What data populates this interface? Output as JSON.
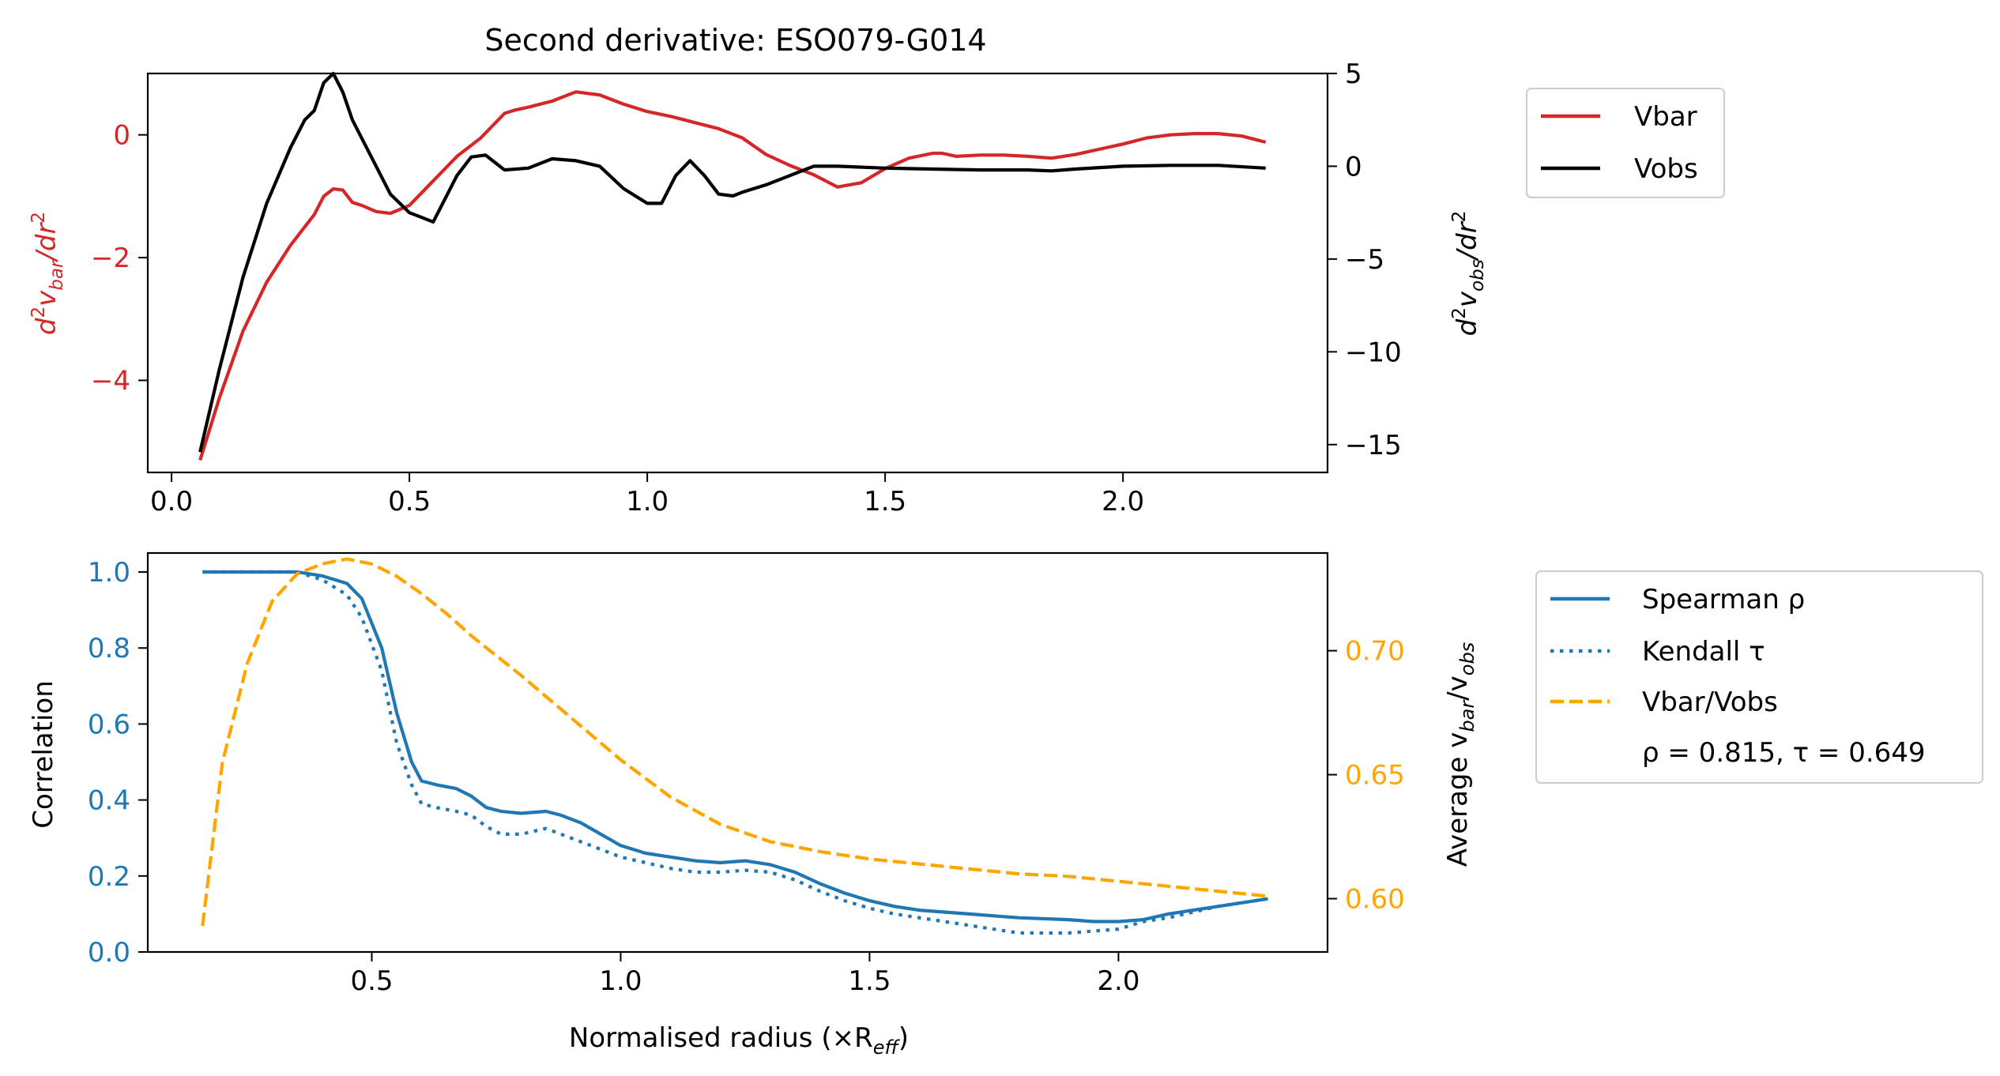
{
  "chart_data": [
    {
      "type": "line",
      "title": "Second derivative: ESO079-G014",
      "xlim": [
        -0.05,
        2.43
      ],
      "xticks": [
        "0.0",
        "0.5",
        "1.0",
        "1.5",
        "2.0"
      ],
      "xtick_values": [
        0.0,
        0.5,
        1.0,
        1.5,
        2.0
      ],
      "left_axis": {
        "ylim": [
          -5.5,
          1.0
        ],
        "ticks": [
          "0",
          "−2",
          "−4"
        ],
        "tick_values": [
          0,
          -2,
          -4
        ],
        "color": "#d62728"
      },
      "right_axis": {
        "ylim": [
          -16.5,
          5.0
        ],
        "ticks": [
          "5",
          "0",
          "−5",
          "−10",
          "−15"
        ],
        "tick_values": [
          5,
          0,
          -5,
          -10,
          -15
        ],
        "color": "#000000"
      },
      "legend": {
        "placement": "outside-right-top",
        "entries": [
          "Vbar",
          "Vobs"
        ]
      },
      "grid": false,
      "series": [
        {
          "name": "Vbar",
          "axis": "left",
          "color": "#d62728",
          "x": [
            0.06,
            0.1,
            0.15,
            0.2,
            0.25,
            0.3,
            0.32,
            0.34,
            0.36,
            0.38,
            0.4,
            0.43,
            0.46,
            0.5,
            0.55,
            0.6,
            0.65,
            0.7,
            0.72,
            0.75,
            0.8,
            0.85,
            0.9,
            0.95,
            1.0,
            1.05,
            1.1,
            1.15,
            1.2,
            1.25,
            1.3,
            1.35,
            1.4,
            1.45,
            1.5,
            1.55,
            1.6,
            1.62,
            1.65,
            1.7,
            1.75,
            1.8,
            1.85,
            1.9,
            2.0,
            2.05,
            2.1,
            2.15,
            2.2,
            2.25,
            2.3
          ],
          "y": [
            -5.3,
            -4.3,
            -3.2,
            -2.4,
            -1.8,
            -1.3,
            -1.0,
            -0.88,
            -0.9,
            -1.1,
            -1.15,
            -1.25,
            -1.28,
            -1.15,
            -0.75,
            -0.35,
            -0.05,
            0.35,
            0.4,
            0.45,
            0.55,
            0.7,
            0.65,
            0.5,
            0.38,
            0.3,
            0.2,
            0.1,
            -0.05,
            -0.32,
            -0.5,
            -0.65,
            -0.85,
            -0.78,
            -0.55,
            -0.38,
            -0.3,
            -0.3,
            -0.35,
            -0.33,
            -0.33,
            -0.35,
            -0.38,
            -0.32,
            -0.15,
            -0.05,
            0.0,
            0.02,
            0.02,
            -0.02,
            -0.12
          ]
        },
        {
          "name": "Vobs",
          "axis": "right",
          "color": "#000000",
          "x": [
            0.06,
            0.1,
            0.15,
            0.2,
            0.25,
            0.28,
            0.3,
            0.32,
            0.34,
            0.36,
            0.38,
            0.4,
            0.43,
            0.46,
            0.5,
            0.53,
            0.55,
            0.57,
            0.6,
            0.63,
            0.66,
            0.7,
            0.75,
            0.8,
            0.85,
            0.9,
            0.95,
            1.0,
            1.03,
            1.06,
            1.09,
            1.12,
            1.15,
            1.18,
            1.2,
            1.25,
            1.3,
            1.35,
            1.4,
            1.5,
            1.6,
            1.7,
            1.8,
            1.85,
            1.9,
            2.0,
            2.1,
            2.2,
            2.3
          ],
          "y": [
            -15.4,
            -11.0,
            -6.0,
            -2.0,
            1.0,
            2.5,
            3.0,
            4.5,
            5.0,
            4.0,
            2.5,
            1.5,
            0.0,
            -1.5,
            -2.5,
            -2.8,
            -3.0,
            -2.0,
            -0.5,
            0.5,
            0.6,
            -0.2,
            -0.1,
            0.4,
            0.3,
            0.0,
            -1.2,
            -2.0,
            -2.0,
            -0.5,
            0.3,
            -0.5,
            -1.5,
            -1.6,
            -1.4,
            -1.0,
            -0.5,
            0.0,
            0.0,
            -0.1,
            -0.15,
            -0.2,
            -0.2,
            -0.25,
            -0.15,
            0.0,
            0.05,
            0.05,
            -0.1
          ]
        }
      ]
    },
    {
      "type": "line",
      "xlabel": "Normalised radius (×R",
      "xlabel_sub": "eff",
      "xlabel_close": ")",
      "xlim": [
        0.05,
        2.42
      ],
      "xticks": [
        "0.5",
        "1.0",
        "1.5",
        "2.0"
      ],
      "xtick_values": [
        0.5,
        1.0,
        1.5,
        2.0
      ],
      "left_axis": {
        "label": "Correlation",
        "ylim": [
          0.0,
          1.05
        ],
        "ticks": [
          "0.0",
          "0.2",
          "0.4",
          "0.6",
          "0.8",
          "1.0"
        ],
        "tick_values": [
          0.0,
          0.2,
          0.4,
          0.6,
          0.8,
          1.0
        ],
        "color": "#1f77b4"
      },
      "right_axis": {
        "label": "Average v",
        "label_sub1": "bar",
        "label_mid": "/v",
        "label_sub2": "obs",
        "ylim": [
          0.5785,
          0.7394
        ],
        "ticks": [
          "0.60",
          "0.65",
          "0.70"
        ],
        "tick_values": [
          0.6,
          0.65,
          0.7
        ],
        "color": "#ffa500"
      },
      "legend": {
        "placement": "outside-right-top",
        "entries": [
          "Spearman ρ",
          "Kendall τ",
          "Vbar/Vobs"
        ],
        "annotation": "ρ = 0.815, τ = 0.649"
      },
      "grid": false,
      "series": [
        {
          "name": "Spearman ρ",
          "axis": "left",
          "style": "solid",
          "color": "#1f77b4",
          "x": [
            0.16,
            0.25,
            0.35,
            0.4,
            0.45,
            0.48,
            0.52,
            0.55,
            0.58,
            0.6,
            0.63,
            0.67,
            0.7,
            0.73,
            0.76,
            0.8,
            0.85,
            0.88,
            0.92,
            0.96,
            1.0,
            1.05,
            1.1,
            1.15,
            1.2,
            1.25,
            1.3,
            1.35,
            1.4,
            1.45,
            1.5,
            1.55,
            1.6,
            1.7,
            1.8,
            1.9,
            1.95,
            2.0,
            2.05,
            2.1,
            2.2,
            2.3
          ],
          "y": [
            1.0,
            1.0,
            1.0,
            0.99,
            0.97,
            0.93,
            0.8,
            0.63,
            0.5,
            0.45,
            0.44,
            0.43,
            0.41,
            0.38,
            0.37,
            0.365,
            0.37,
            0.36,
            0.34,
            0.31,
            0.28,
            0.26,
            0.25,
            0.24,
            0.235,
            0.24,
            0.23,
            0.21,
            0.18,
            0.155,
            0.135,
            0.12,
            0.11,
            0.1,
            0.09,
            0.085,
            0.08,
            0.08,
            0.085,
            0.1,
            0.12,
            0.14
          ]
        },
        {
          "name": "Kendall τ",
          "axis": "left",
          "style": "dotted",
          "color": "#1f77b4",
          "x": [
            0.16,
            0.25,
            0.35,
            0.4,
            0.45,
            0.48,
            0.52,
            0.55,
            0.58,
            0.6,
            0.63,
            0.67,
            0.7,
            0.73,
            0.76,
            0.8,
            0.85,
            0.88,
            0.92,
            0.96,
            1.0,
            1.05,
            1.1,
            1.15,
            1.2,
            1.25,
            1.3,
            1.35,
            1.4,
            1.45,
            1.5,
            1.55,
            1.6,
            1.7,
            1.8,
            1.9,
            1.95,
            2.0,
            2.05,
            2.1,
            2.2,
            2.3
          ],
          "y": [
            1.0,
            1.0,
            1.0,
            0.98,
            0.94,
            0.88,
            0.74,
            0.55,
            0.44,
            0.39,
            0.38,
            0.37,
            0.36,
            0.33,
            0.31,
            0.31,
            0.325,
            0.31,
            0.29,
            0.27,
            0.25,
            0.235,
            0.22,
            0.21,
            0.21,
            0.215,
            0.21,
            0.19,
            0.16,
            0.135,
            0.115,
            0.1,
            0.09,
            0.07,
            0.05,
            0.05,
            0.055,
            0.06,
            0.08,
            0.09,
            0.12,
            0.14
          ]
        },
        {
          "name": "Vbar/Vobs",
          "axis": "right",
          "style": "dashed",
          "color": "#ffa500",
          "x": [
            0.16,
            0.2,
            0.25,
            0.3,
            0.35,
            0.4,
            0.45,
            0.5,
            0.55,
            0.6,
            0.65,
            0.7,
            0.8,
            0.9,
            1.0,
            1.1,
            1.2,
            1.3,
            1.4,
            1.5,
            1.6,
            1.7,
            1.8,
            1.9,
            2.0,
            2.1,
            2.2,
            2.3
          ],
          "y": [
            0.589,
            0.655,
            0.695,
            0.72,
            0.731,
            0.735,
            0.737,
            0.735,
            0.73,
            0.723,
            0.715,
            0.706,
            0.69,
            0.673,
            0.656,
            0.641,
            0.63,
            0.623,
            0.619,
            0.616,
            0.614,
            0.612,
            0.61,
            0.609,
            0.607,
            0.605,
            0.603,
            0.601
          ]
        }
      ]
    }
  ]
}
